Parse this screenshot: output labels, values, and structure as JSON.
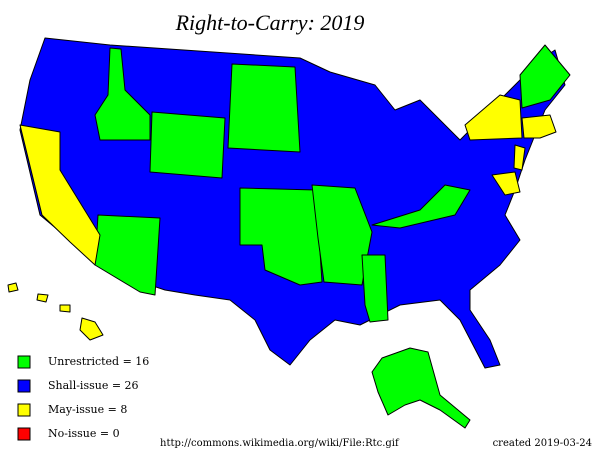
{
  "title": "Right-to-Carry: 2019",
  "legend": [
    {
      "label": "Unrestricted = 16",
      "color": "#00ff00"
    },
    {
      "label": "Shall-issue = 26",
      "color": "#0000ff"
    },
    {
      "label": "May-issue = 8",
      "color": "#ffff00"
    },
    {
      "label": "No-issue = 0",
      "color": "#ff0000"
    }
  ],
  "source": "http://commons.wikimedia.org/wiki/File:Rtc.gif",
  "created": "created 2019-03-24"
}
